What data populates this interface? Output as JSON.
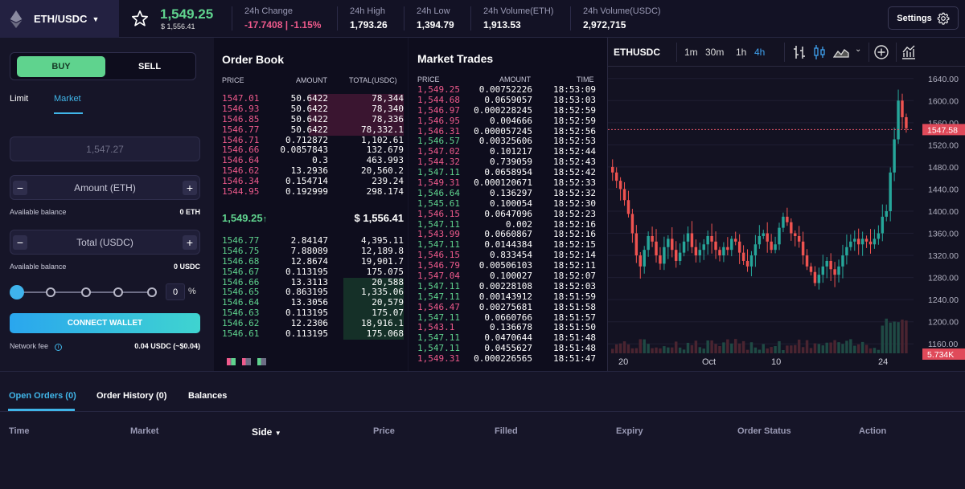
{
  "header": {
    "pair": "ETH/USDC",
    "last_price": "1,549.25",
    "last_price_usd": "$ 1,556.41",
    "stats": [
      {
        "label": "24h Change",
        "value": "-17.7408 | -1.15%",
        "color": "#ef5a8c"
      },
      {
        "label": "24h High",
        "value": "1,793.26",
        "color": "#ffffff"
      },
      {
        "label": "24h Low",
        "value": "1,394.79",
        "color": "#ffffff"
      },
      {
        "label": "24h Volume(ETH)",
        "value": "1,913.53",
        "color": "#ffffff"
      },
      {
        "label": "24h Volume(USDC)",
        "value": "2,972,715",
        "color": "#ffffff"
      }
    ],
    "settings_label": "Settings",
    "icons": {
      "pair": "ethereum-logo-icon",
      "caret": "caret-down-icon",
      "favorite": "star-icon",
      "settings": "gear-icon"
    }
  },
  "trade_form": {
    "buy_label": "BUY",
    "sell_label": "SELL",
    "order_types": [
      "Limit",
      "Market"
    ],
    "active_order_type": "Market",
    "price_value": "1,547.27",
    "amount_placeholder": "Amount (ETH)",
    "total_placeholder": "Total (USDC)",
    "available_balance_label": "Available balance",
    "eth_balance": "0 ETH",
    "usdc_balance": "0 USDC",
    "percent_value": "0",
    "percent_sign": "%",
    "connect_label": "CONNECT WALLET",
    "network_fee_label": "Network fee",
    "network_fee_value": "0.04 USDC (~$0.04)",
    "minus_symbol": "−",
    "plus_symbol": "+",
    "info_icon": "info-icon",
    "accent_color": "#40b5e8",
    "buy_color": "#5fd38e"
  },
  "order_book": {
    "title": "Order Book",
    "headers": [
      "PRICE",
      "AMOUNT",
      "TOTAL(USDC)"
    ],
    "asks": [
      {
        "price": "1547.01",
        "amount": "50.6422",
        "total": "78,344",
        "depth": 0.52
      },
      {
        "price": "1546.93",
        "amount": "50.6422",
        "total": "78,340",
        "depth": 0.52
      },
      {
        "price": "1546.85",
        "amount": "50.6422",
        "total": "78,336",
        "depth": 0.52
      },
      {
        "price": "1546.77",
        "amount": "50.6422",
        "total": "78,332.1",
        "depth": 0.52
      },
      {
        "price": "1546.71",
        "amount": "0.712872",
        "total": "1,102.61",
        "depth": 0
      },
      {
        "price": "1546.66",
        "amount": "0.0857843",
        "total": "132.679",
        "depth": 0
      },
      {
        "price": "1546.64",
        "amount": "0.3",
        "total": "463.993",
        "depth": 0
      },
      {
        "price": "1546.62",
        "amount": "13.2936",
        "total": "20,560.2",
        "depth": 0
      },
      {
        "price": "1546.34",
        "amount": "0.154714",
        "total": "239.24",
        "depth": 0
      },
      {
        "price": "1544.95",
        "amount": "0.192999",
        "total": "298.174",
        "depth": 0
      }
    ],
    "mid_price": "1,549.25",
    "mid_arrow": "↑",
    "mid_usd": "$ 1,556.41",
    "bids": [
      {
        "price": "1546.77",
        "amount": "2.84147",
        "total": "4,395.11",
        "depth": 0
      },
      {
        "price": "1546.75",
        "amount": "7.88089",
        "total": "12,189.8",
        "depth": 0
      },
      {
        "price": "1546.68",
        "amount": "12.8674",
        "total": "19,901.7",
        "depth": 0
      },
      {
        "price": "1546.67",
        "amount": "0.113195",
        "total": "175.075",
        "depth": 0
      },
      {
        "price": "1546.66",
        "amount": "13.3113",
        "total": "20,588",
        "depth": 0.33
      },
      {
        "price": "1546.65",
        "amount": "0.863195",
        "total": "1,335.06",
        "depth": 0.33
      },
      {
        "price": "1546.64",
        "amount": "13.3056",
        "total": "20,579",
        "depth": 0.33
      },
      {
        "price": "1546.63",
        "amount": "0.113195",
        "total": "175.07",
        "depth": 0.33
      },
      {
        "price": "1546.62",
        "amount": "12.2306",
        "total": "18,916.1",
        "depth": 0.33
      },
      {
        "price": "1546.61",
        "amount": "0.113195",
        "total": "175.068",
        "depth": 0.33
      }
    ],
    "view_icons": [
      "order-book-both-icon",
      "order-book-asks-icon",
      "order-book-bids-icon"
    ]
  },
  "market_trades": {
    "title": "Market Trades",
    "headers": [
      "PRICE",
      "AMOUNT",
      "TIME"
    ],
    "rows": [
      {
        "price": "1,549.25",
        "amount": "0.00752226",
        "time": "18:53:09",
        "side": "sell"
      },
      {
        "price": "1,544.68",
        "amount": "0.0659057",
        "time": "18:53:03",
        "side": "sell"
      },
      {
        "price": "1,546.97",
        "amount": "0.000228245",
        "time": "18:52:59",
        "side": "sell"
      },
      {
        "price": "1,546.95",
        "amount": "0.004666",
        "time": "18:52:59",
        "side": "sell"
      },
      {
        "price": "1,546.31",
        "amount": "0.000057245",
        "time": "18:52:56",
        "side": "sell"
      },
      {
        "price": "1,546.57",
        "amount": "0.00325606",
        "time": "18:52:53",
        "side": "buy"
      },
      {
        "price": "1,547.02",
        "amount": "0.101217",
        "time": "18:52:44",
        "side": "sell"
      },
      {
        "price": "1,544.32",
        "amount": "0.739059",
        "time": "18:52:43",
        "side": "sell"
      },
      {
        "price": "1,547.11",
        "amount": "0.0658954",
        "time": "18:52:42",
        "side": "buy"
      },
      {
        "price": "1,549.31",
        "amount": "0.000120671",
        "time": "18:52:33",
        "side": "sell"
      },
      {
        "price": "1,546.64",
        "amount": "0.136297",
        "time": "18:52:32",
        "side": "buy"
      },
      {
        "price": "1,545.61",
        "amount": "0.100054",
        "time": "18:52:30",
        "side": "buy"
      },
      {
        "price": "1,546.15",
        "amount": "0.0647096",
        "time": "18:52:23",
        "side": "sell"
      },
      {
        "price": "1,547.11",
        "amount": "0.002",
        "time": "18:52:16",
        "side": "buy"
      },
      {
        "price": "1,543.99",
        "amount": "0.0660867",
        "time": "18:52:16",
        "side": "sell"
      },
      {
        "price": "1,547.11",
        "amount": "0.0144384",
        "time": "18:52:15",
        "side": "buy"
      },
      {
        "price": "1,546.15",
        "amount": "0.833454",
        "time": "18:52:14",
        "side": "sell"
      },
      {
        "price": "1,546.79",
        "amount": "0.00506103",
        "time": "18:52:11",
        "side": "sell"
      },
      {
        "price": "1,547.04",
        "amount": "0.100027",
        "time": "18:52:07",
        "side": "sell"
      },
      {
        "price": "1,547.11",
        "amount": "0.00228108",
        "time": "18:52:03",
        "side": "buy"
      },
      {
        "price": "1,547.11",
        "amount": "0.00143912",
        "time": "18:51:59",
        "side": "buy"
      },
      {
        "price": "1,546.47",
        "amount": "0.00275681",
        "time": "18:51:58",
        "side": "sell"
      },
      {
        "price": "1,547.11",
        "amount": "0.0660766",
        "time": "18:51:57",
        "side": "buy"
      },
      {
        "price": "1,543.1",
        "amount": "0.136678",
        "time": "18:51:50",
        "side": "sell"
      },
      {
        "price": "1,547.11",
        "amount": "0.0470644",
        "time": "18:51:48",
        "side": "buy"
      },
      {
        "price": "1,547.11",
        "amount": "0.0455627",
        "time": "18:51:48",
        "side": "buy"
      },
      {
        "price": "1,549.31",
        "amount": "0.000226565",
        "time": "18:51:47",
        "side": "sell"
      }
    ],
    "buy_color": "#5fd38e",
    "sell_color": "#ef5a8c"
  },
  "price_chart": {
    "symbol": "ETHUSDC",
    "timeframes": [
      "1m",
      "30m",
      "1h",
      "4h"
    ],
    "active_timeframe": "4h",
    "toolbar_icons": [
      "bar-style-icon",
      "candle-style-icon",
      "area-style-icon",
      "chevron-down-icon",
      "add-indicator-icon",
      "chart-indicators-icon"
    ],
    "y_ticks": [
      "1640.00",
      "1600.00",
      "1560.00",
      "1520.00",
      "1480.00",
      "1440.00",
      "1400.00",
      "1360.00",
      "1320.00",
      "1280.00",
      "1240.00",
      "1200.00",
      "1160.00"
    ],
    "x_ticks": [
      "20",
      "Oct",
      "10",
      "24"
    ],
    "last_price_label": "1547.58",
    "volume_label": "5.734K",
    "logo_icon": "tradingview-logo-icon",
    "settings_icon": "gear-icon"
  },
  "chart_data": {
    "type": "candlestick",
    "y_range": [
      1140,
      1660
    ],
    "last_price": 1547.58,
    "volume_last": "5.734K",
    "close_series": [
      1470,
      1455,
      1440,
      1420,
      1395,
      1360,
      1320,
      1300,
      1330,
      1355,
      1345,
      1320,
      1305,
      1335,
      1350,
      1330,
      1310,
      1325,
      1345,
      1360,
      1335,
      1320,
      1330,
      1340,
      1355,
      1345,
      1330,
      1320,
      1335,
      1330,
      1350,
      1345,
      1325,
      1310,
      1300,
      1320,
      1340,
      1355,
      1360,
      1345,
      1330,
      1340,
      1370,
      1390,
      1380,
      1360,
      1355,
      1345,
      1320,
      1300,
      1290,
      1270,
      1285,
      1300,
      1310,
      1295,
      1285,
      1300,
      1320,
      1335,
      1345,
      1350,
      1340,
      1350,
      1345,
      1340,
      1350,
      1360,
      1390,
      1400,
      1470,
      1530,
      1600,
      1570,
      1550
    ]
  },
  "bottom": {
    "tabs": [
      "Open Orders (0)",
      "Order History (0)",
      "Balances"
    ],
    "active_tab": "Open Orders (0)",
    "columns": [
      "Time",
      "Market",
      "Side",
      "Price",
      "Filled",
      "Expiry",
      "Order Status",
      "Action"
    ],
    "sort_icon": "caret-down-icon"
  }
}
